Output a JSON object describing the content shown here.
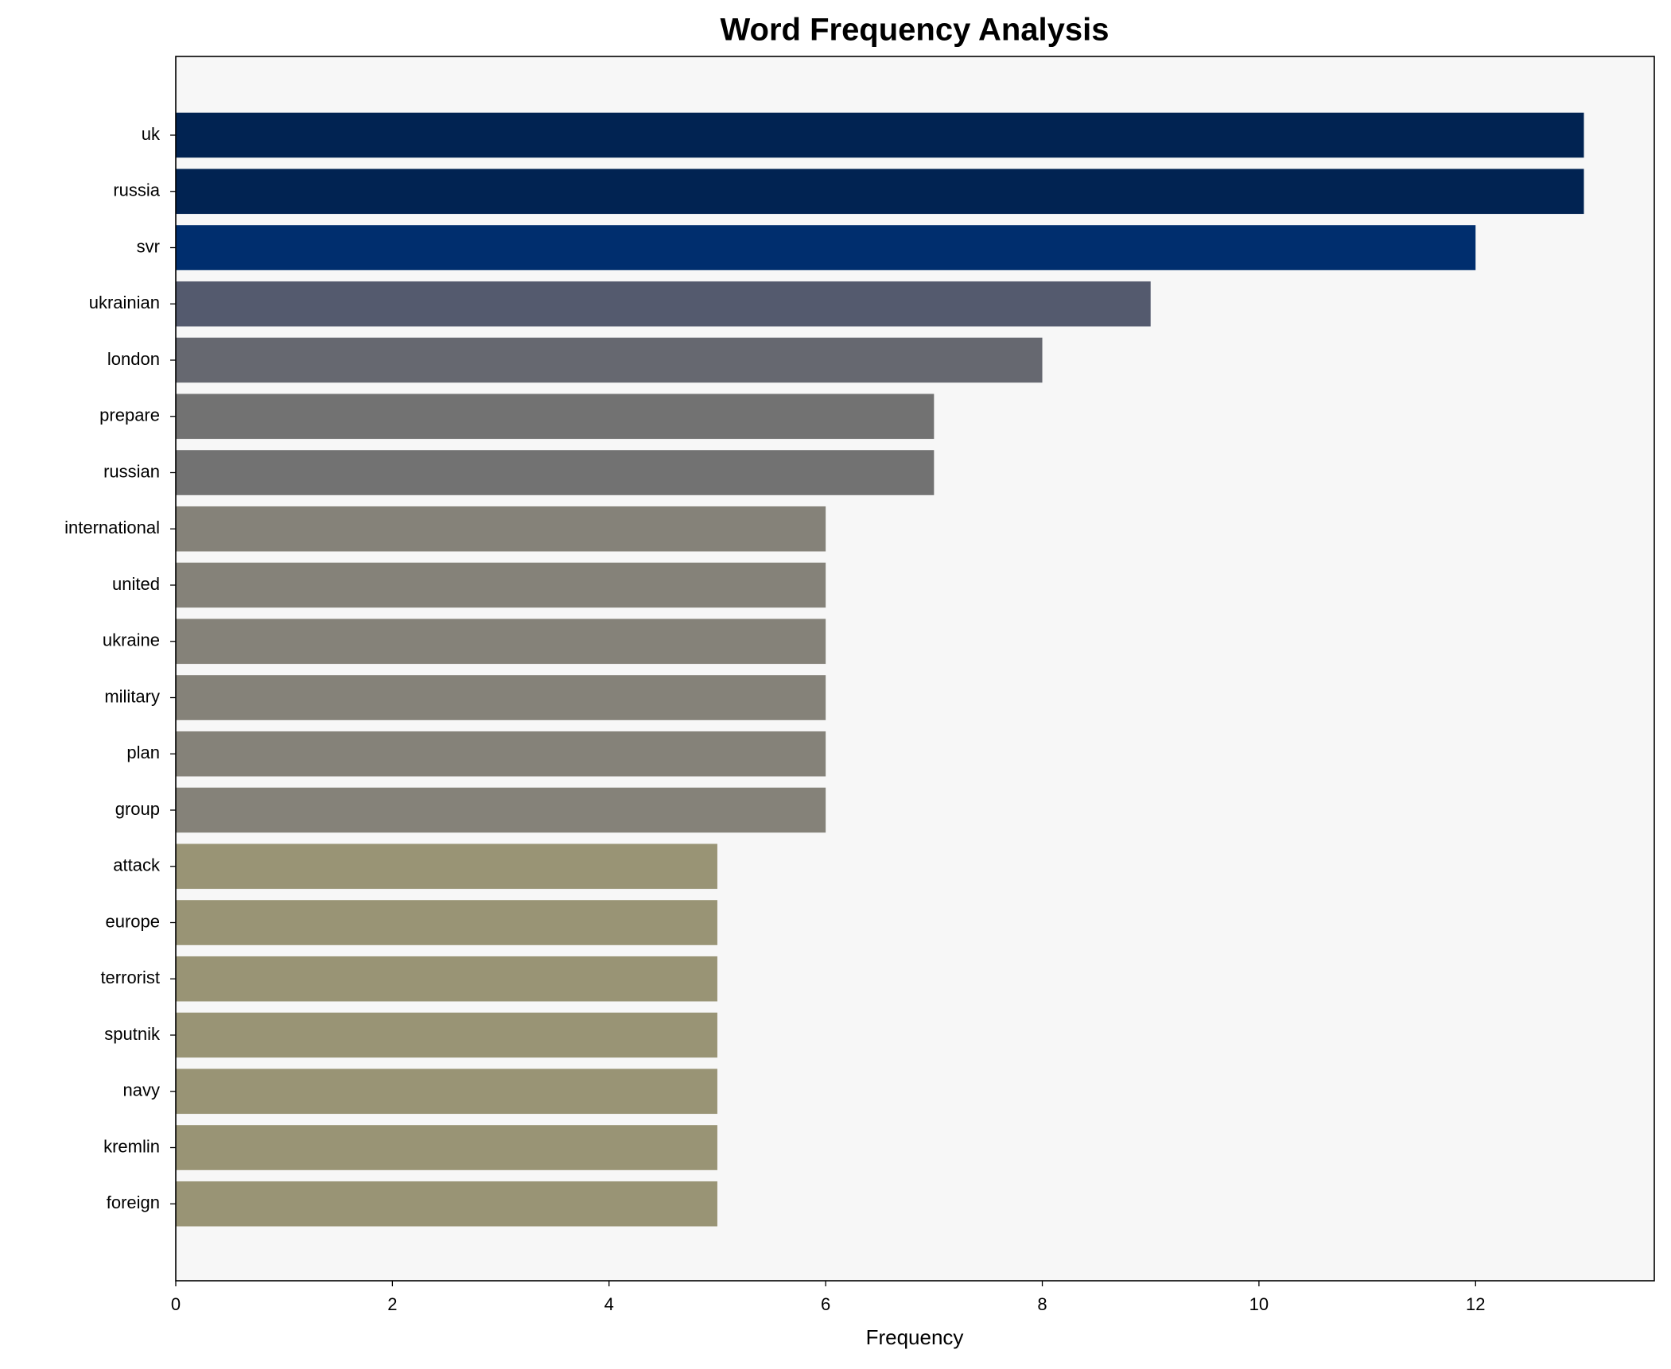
{
  "chart_data": {
    "type": "barh",
    "title": "Word Frequency Analysis",
    "x_label": "Frequency",
    "categories": [
      "uk",
      "russia",
      "svr",
      "ukrainian",
      "london",
      "prepare",
      "russian",
      "international",
      "united",
      "ukraine",
      "military",
      "plan",
      "group",
      "attack",
      "europe",
      "terrorist",
      "sputnik",
      "navy",
      "kremlin",
      "foreign"
    ],
    "values": [
      13,
      13,
      12,
      9,
      8,
      7,
      7,
      6,
      6,
      6,
      6,
      6,
      6,
      5,
      5,
      5,
      5,
      5,
      5,
      5
    ],
    "colors": [
      "#012352",
      "#012352",
      "#002e6e",
      "#545a6e",
      "#666870",
      "#727272",
      "#727272",
      "#858279",
      "#858279",
      "#858279",
      "#858279",
      "#858279",
      "#858279",
      "#999475",
      "#999475",
      "#999475",
      "#999475",
      "#999475",
      "#999475",
      "#999475"
    ],
    "xlim": [
      0,
      13.65
    ],
    "xticks": [
      0,
      2,
      4,
      6,
      8,
      10,
      12
    ],
    "grid": false
  }
}
